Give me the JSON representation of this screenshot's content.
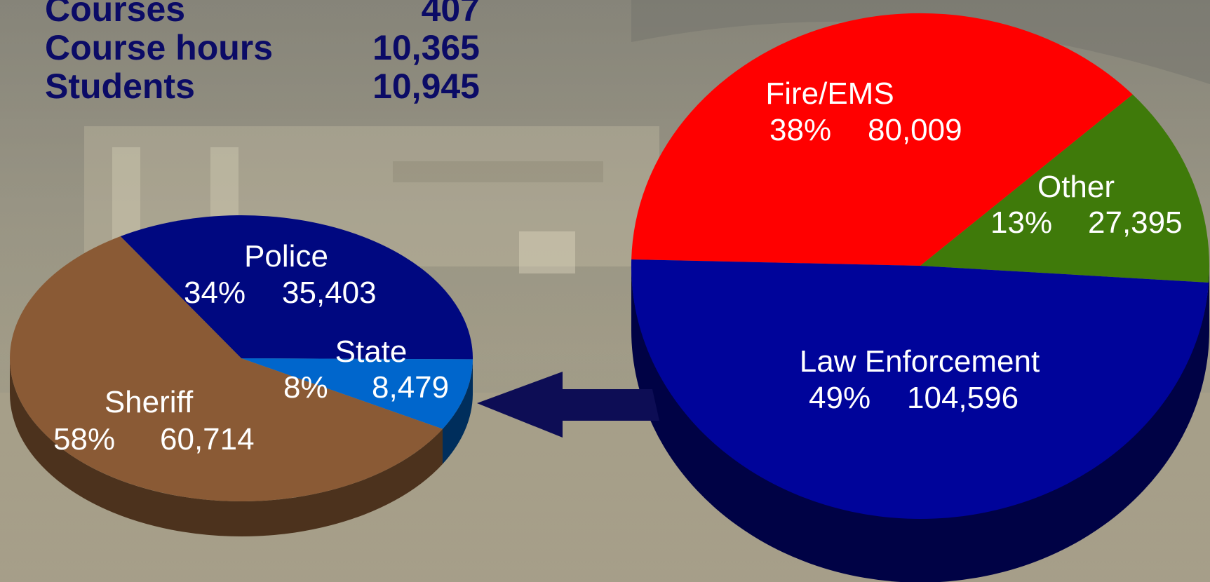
{
  "summary_stats": [
    {
      "label": "Courses",
      "value": "407"
    },
    {
      "label": "Course hours",
      "value": "10,365"
    },
    {
      "label": "Students",
      "value": "10,945"
    }
  ],
  "chart_data": [
    {
      "type": "pie",
      "title": "",
      "slices": [
        {
          "name": "Fire/EMS",
          "percent_label": "38%",
          "value": 80009,
          "value_label": "80,009",
          "color": "#ff0000"
        },
        {
          "name": "Other",
          "percent_label": "13%",
          "value": 27395,
          "value_label": "27,395",
          "color": "#3f7a0a"
        },
        {
          "name": "Law Enforcement",
          "percent_label": "49%",
          "value": 104596,
          "value_label": "104,596",
          "color": "#00049a"
        }
      ]
    },
    {
      "type": "pie",
      "title": "",
      "slices": [
        {
          "name": "Police",
          "percent_label": "34%",
          "value": 35403,
          "value_label": "35,403",
          "color": "#000880"
        },
        {
          "name": "State",
          "percent_label": "8%",
          "value": 8479,
          "value_label": "8,479",
          "color": "#0066cc"
        },
        {
          "name": "Sheriff",
          "percent_label": "58%",
          "value": 60714,
          "value_label": "60,714",
          "color": "#8a5a35"
        }
      ]
    }
  ],
  "colors": {
    "stats_text": "#0b0b66",
    "arrow": "#0d0d55",
    "label_text": "#ffffff"
  }
}
